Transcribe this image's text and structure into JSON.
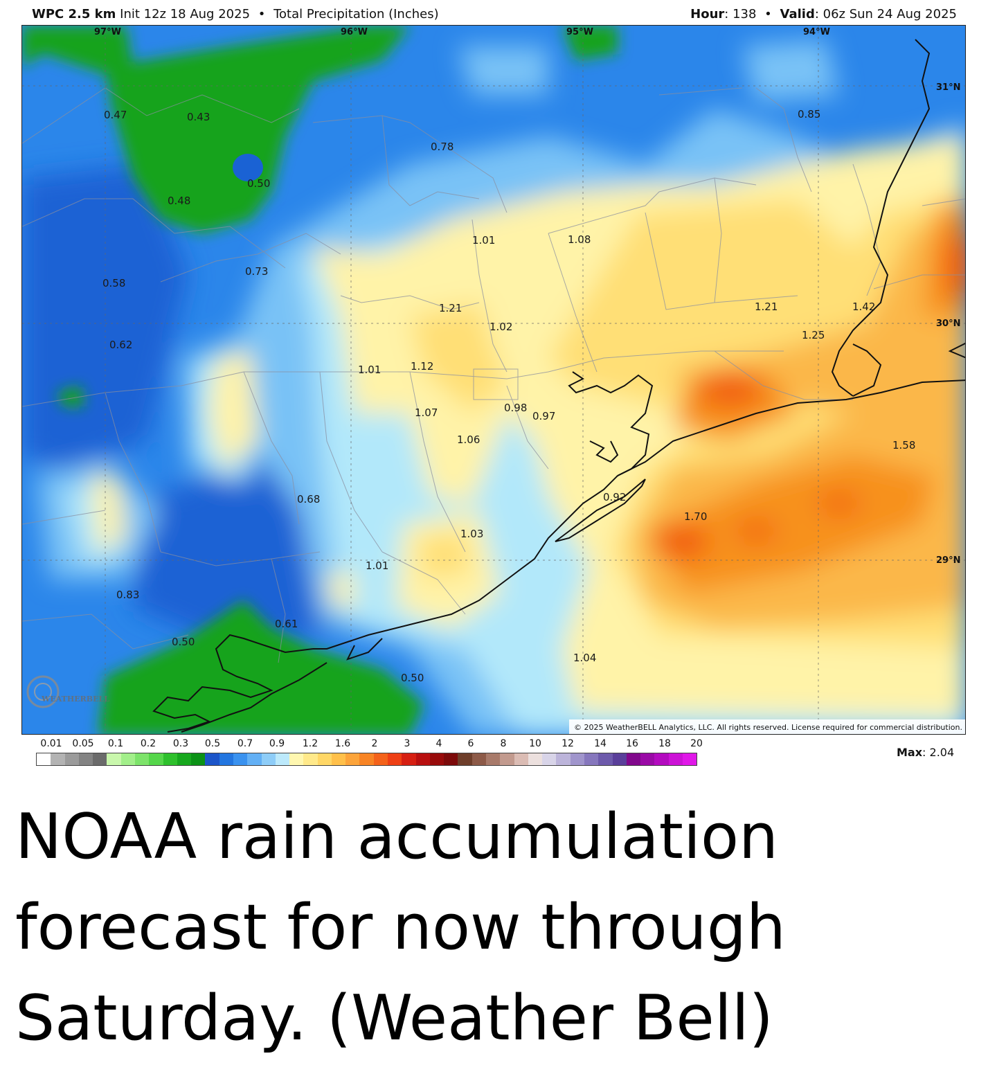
{
  "header": {
    "model_bold": "WPC 2.5 km",
    "init": "Init 12z 18 Aug 2025",
    "separator": "•",
    "product": "Total Precipitation (Inches)",
    "hour_label": "Hour",
    "hour_value": ": 138",
    "valid_label": "Valid",
    "valid_value": ": 06z Sun 24 Aug 2025"
  },
  "map": {
    "longitude_labels": [
      "97°W",
      "96°W",
      "95°W",
      "94°W"
    ],
    "latitude_labels": [
      "31°N",
      "30°N",
      "29°N"
    ],
    "point_values": [
      "0.47",
      "0.43",
      "0.50",
      "0.48",
      "0.78",
      "0.85",
      "1.01",
      "1.08",
      "0.73",
      "0.58",
      "1.21",
      "1.02",
      "1.21",
      "1.42",
      "1.25",
      "0.62",
      "1.01",
      "1.12",
      "1.07",
      "0.98",
      "0.97",
      "1.06",
      "1.58",
      "0.92",
      "0.68",
      "1.70",
      "1.03",
      "1.01",
      "0.83",
      "0.61",
      "0.50",
      "1.04",
      "0.50"
    ],
    "copyright": "© 2025 WeatherBELL Analytics, LLC. All rights reserved. License required for commercial distribution.",
    "logo_text": "WEATHERBELL",
    "colors": {
      "green": "#12a31d",
      "blue_dark": "#1a62d4",
      "blue": "#2b86ea",
      "blue_light": "#79c2f6",
      "cyan": "#b2e8fa",
      "yellow_light": "#fff3a8",
      "yellow": "#ffdf76",
      "orange_light": "#fbb748",
      "orange": "#f7911d",
      "orange_red": "#f25e0e"
    }
  },
  "legend": {
    "ticks": [
      "0.01",
      "0.05",
      "0.1",
      "0.2",
      "0.3",
      "0.5",
      "0.7",
      "0.9",
      "1.2",
      "1.6",
      "2",
      "3",
      "4",
      "6",
      "8",
      "10",
      "12",
      "14",
      "16",
      "18",
      "20"
    ],
    "colors": [
      "#ffffff",
      "#b3b3b3",
      "#9b9b9b",
      "#838383",
      "#6b6b6b",
      "#c9f7ac",
      "#a2ef8a",
      "#7de36a",
      "#55d64a",
      "#2ec02c",
      "#17a81e",
      "#0b9216",
      "#1c55c9",
      "#2376e0",
      "#3a92ef",
      "#63b0f5",
      "#8ecdf8",
      "#bce9fb",
      "#fff7b0",
      "#ffe98a",
      "#ffd766",
      "#ffc04a",
      "#fca43a",
      "#f88424",
      "#f4621a",
      "#ee3f14",
      "#d61f12",
      "#b80f0f",
      "#980b0b",
      "#7c0a0a",
      "#6e3e2a",
      "#8d5a48",
      "#a87a6a",
      "#c29a8e",
      "#dbbcb4",
      "#ece0de",
      "#d8d4e8",
      "#bcb4da",
      "#a095cc",
      "#8677bd",
      "#6d5aab",
      "#5a3f9a",
      "#81088c",
      "#9a0aa6",
      "#b30bbf",
      "#cc12d6",
      "#e018e8"
    ],
    "max_label": "Max",
    "max_value": ": 2.04"
  },
  "caption": "NOAA rain accumulation forecast for now through Saturday. (Weather Bell)"
}
